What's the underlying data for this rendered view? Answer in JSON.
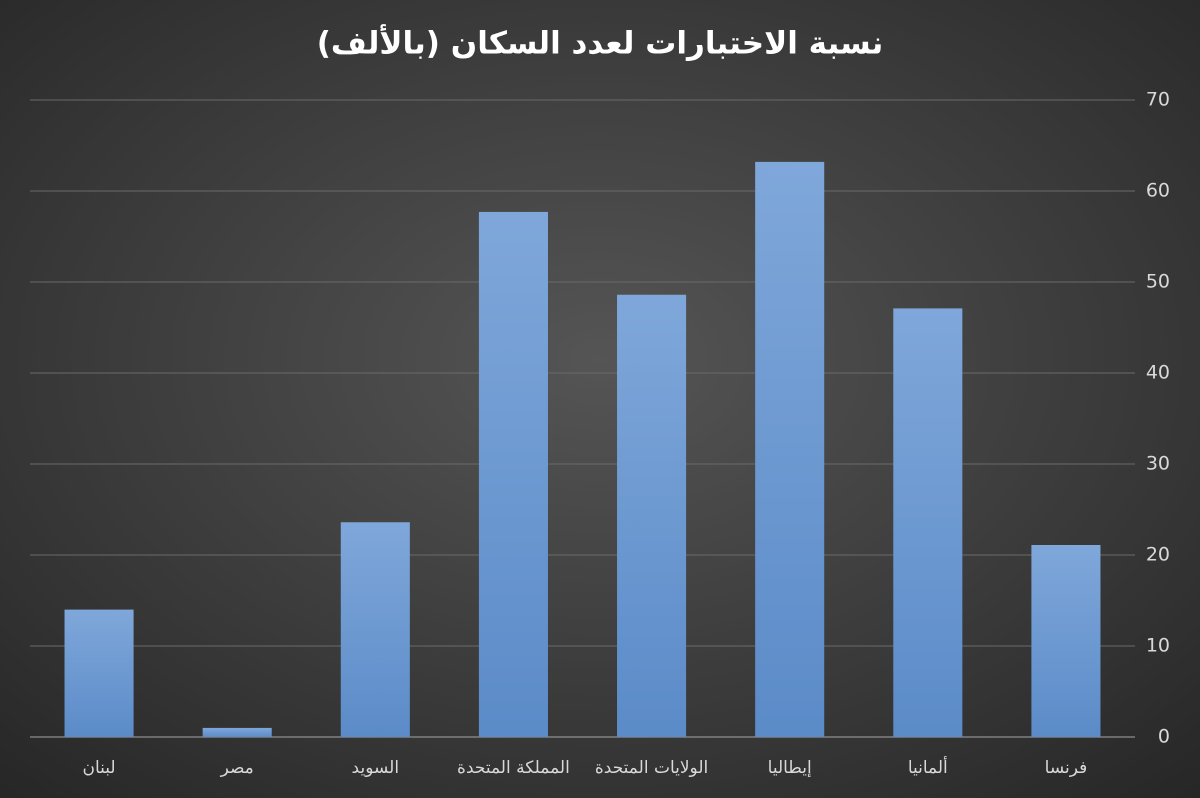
{
  "chart_data": {
    "type": "bar",
    "title": "نسبة الاختبارات لعدد السكان (بالألف)",
    "categories": [
      "لبنان",
      "مصر",
      "السويد",
      "المملكة المتحدة",
      "الولايات المتحدة",
      "إيطاليا",
      "ألمانيا",
      "فرنسا"
    ],
    "values": [
      14,
      1,
      23.6,
      57.7,
      48.6,
      63.2,
      47.1,
      21.1
    ],
    "color": "#6b9ad3",
    "ylim": [
      0,
      70
    ],
    "yticks": [
      0,
      10,
      20,
      30,
      40,
      50,
      60,
      70
    ],
    "grid": true
  }
}
